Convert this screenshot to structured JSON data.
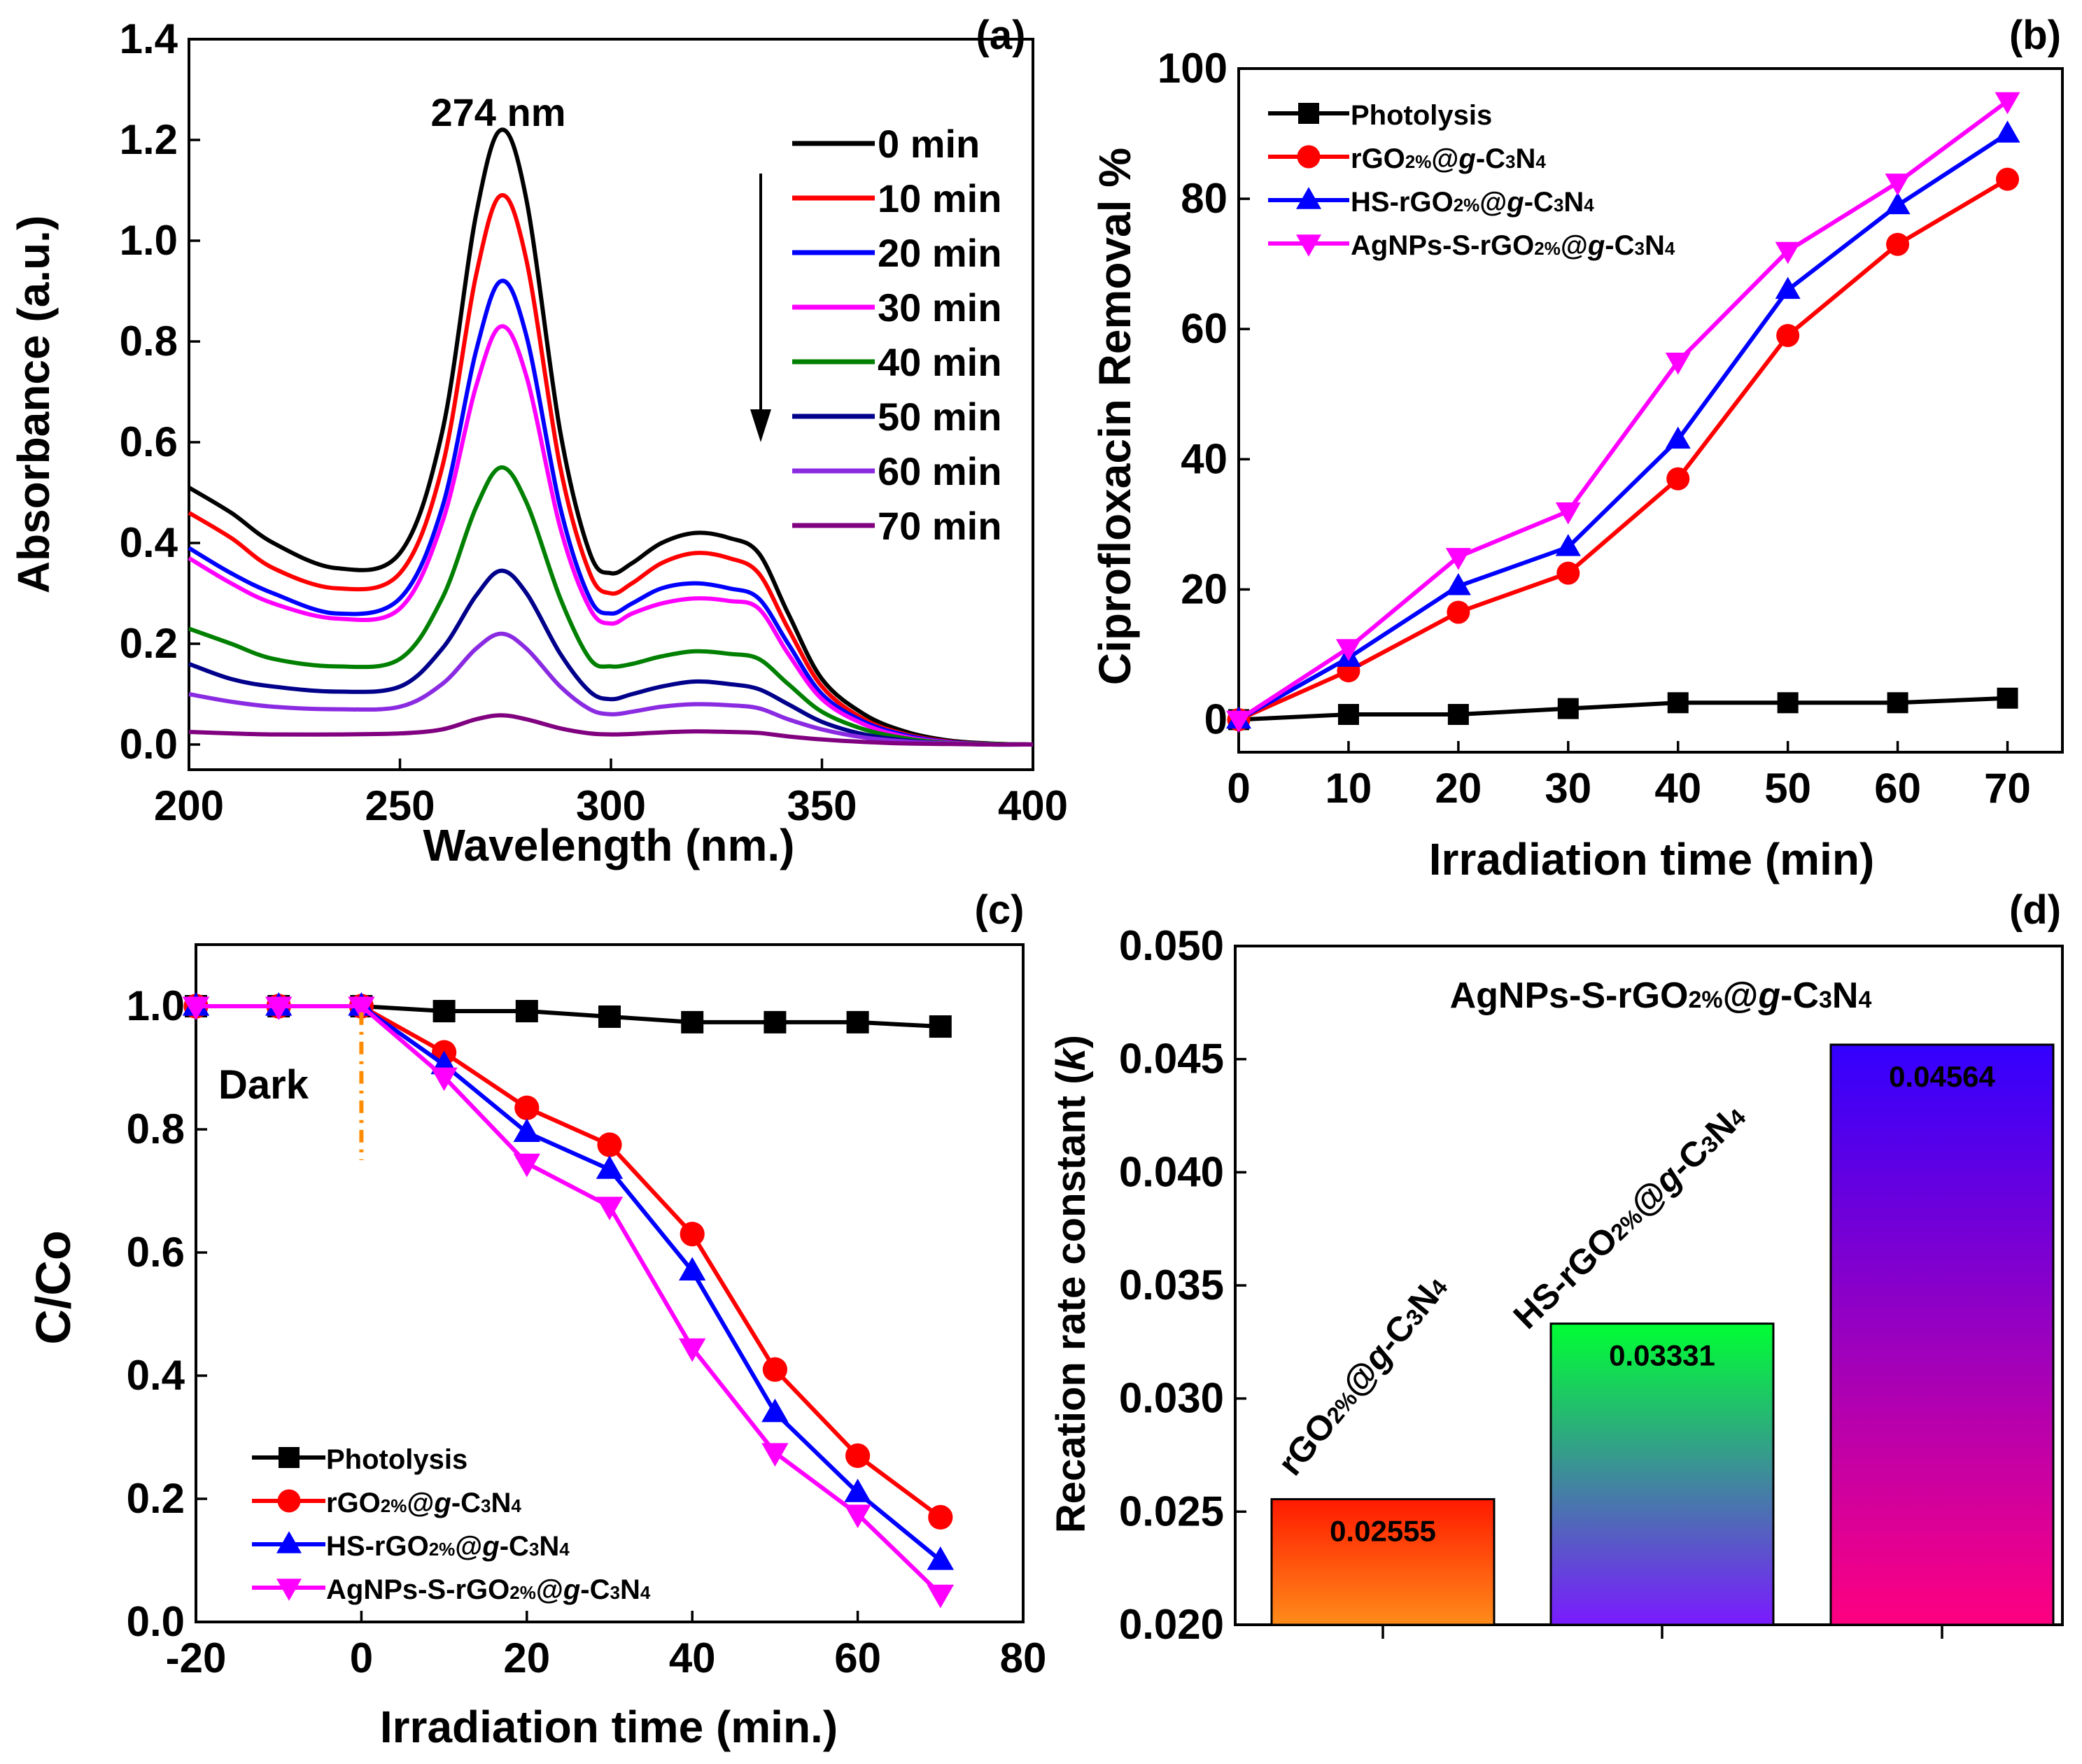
{
  "chart_data": [
    {
      "panel": "(a)",
      "type": "line",
      "xlabel": "Wavelength (nm.)",
      "ylabel": "Absorbance (a.u.)",
      "xlim": [
        200,
        400
      ],
      "ylim": [
        -0.05,
        1.4
      ],
      "xticks": [
        200,
        250,
        300,
        350,
        400
      ],
      "xtick_labels": [
        "200",
        "250",
        "300",
        "350",
        "400"
      ],
      "yticks": [
        0.0,
        0.2,
        0.4,
        0.6,
        0.8,
        1.0,
        1.2,
        1.4
      ],
      "ytick_labels": [
        "0.0",
        "0.2",
        "0.4",
        "0.6",
        "0.8",
        "1.0",
        "1.2",
        "1.4"
      ],
      "annotation": "274 nm",
      "legend_position": "top-right",
      "arrow_direction": "down",
      "x": [
        200,
        210,
        220,
        235,
        250,
        260,
        268,
        274,
        280,
        288,
        295,
        300,
        305,
        312,
        320,
        328,
        335,
        342,
        350,
        360,
        370,
        380,
        390,
        400
      ],
      "series": [
        {
          "name": "0 min",
          "color": "#000000",
          "values": [
            0.51,
            0.46,
            0.4,
            0.35,
            0.38,
            0.62,
            1.05,
            1.22,
            1.08,
            0.62,
            0.38,
            0.34,
            0.36,
            0.4,
            0.42,
            0.41,
            0.38,
            0.26,
            0.13,
            0.06,
            0.025,
            0.008,
            0.002,
            0.0
          ]
        },
        {
          "name": "10 min",
          "color": "#ff0000",
          "values": [
            0.46,
            0.41,
            0.35,
            0.31,
            0.34,
            0.55,
            0.93,
            1.09,
            0.96,
            0.55,
            0.34,
            0.3,
            0.32,
            0.36,
            0.38,
            0.37,
            0.34,
            0.23,
            0.115,
            0.05,
            0.02,
            0.006,
            0.001,
            0.0
          ]
        },
        {
          "name": "20 min",
          "color": "#0000ff",
          "values": [
            0.39,
            0.34,
            0.3,
            0.26,
            0.29,
            0.47,
            0.78,
            0.92,
            0.81,
            0.47,
            0.29,
            0.26,
            0.28,
            0.31,
            0.32,
            0.31,
            0.29,
            0.2,
            0.1,
            0.045,
            0.018,
            0.005,
            0.001,
            0.0
          ]
        },
        {
          "name": "30 min",
          "color": "#ff00ff",
          "values": [
            0.37,
            0.32,
            0.28,
            0.25,
            0.27,
            0.44,
            0.71,
            0.83,
            0.73,
            0.43,
            0.27,
            0.24,
            0.26,
            0.28,
            0.29,
            0.285,
            0.27,
            0.18,
            0.09,
            0.04,
            0.015,
            0.004,
            0.001,
            0.0
          ]
        },
        {
          "name": "40 min",
          "color": "#008000",
          "values": [
            0.23,
            0.2,
            0.17,
            0.155,
            0.17,
            0.29,
            0.47,
            0.55,
            0.48,
            0.29,
            0.17,
            0.155,
            0.16,
            0.175,
            0.185,
            0.18,
            0.17,
            0.12,
            0.065,
            0.03,
            0.012,
            0.003,
            0.001,
            0.0
          ]
        },
        {
          "name": "50 min",
          "color": "#00008b",
          "values": [
            0.16,
            0.13,
            0.115,
            0.105,
            0.115,
            0.19,
            0.295,
            0.345,
            0.3,
            0.18,
            0.105,
            0.09,
            0.1,
            0.115,
            0.125,
            0.12,
            0.11,
            0.08,
            0.045,
            0.02,
            0.008,
            0.002,
            0.0,
            0.0
          ]
        },
        {
          "name": "60 min",
          "color": "#8a2be2",
          "values": [
            0.1,
            0.085,
            0.075,
            0.07,
            0.075,
            0.12,
            0.19,
            0.22,
            0.19,
            0.115,
            0.07,
            0.06,
            0.065,
            0.075,
            0.08,
            0.078,
            0.072,
            0.05,
            0.03,
            0.014,
            0.006,
            0.002,
            0.0,
            0.0
          ]
        },
        {
          "name": "70 min",
          "color": "#800080",
          "values": [
            0.025,
            0.022,
            0.02,
            0.02,
            0.022,
            0.03,
            0.05,
            0.058,
            0.05,
            0.032,
            0.022,
            0.02,
            0.021,
            0.024,
            0.026,
            0.025,
            0.023,
            0.016,
            0.01,
            0.005,
            0.002,
            0.001,
            0.0,
            0.0
          ]
        }
      ]
    },
    {
      "panel": "(b)",
      "type": "line",
      "xlabel": "Irradiation time (min)",
      "ylabel": "Ciprofloxacin Removal %",
      "xlim": [
        0,
        75
      ],
      "ylim": [
        -5,
        100
      ],
      "xticks": [
        0,
        10,
        20,
        30,
        40,
        50,
        60,
        70
      ],
      "xtick_labels": [
        "0",
        "10",
        "20",
        "30",
        "40",
        "50",
        "60",
        "70"
      ],
      "yticks": [
        0,
        20,
        40,
        60,
        80,
        100
      ],
      "ytick_labels": [
        "0",
        "20",
        "40",
        "60",
        "80",
        "100"
      ],
      "legend_position": "top-left",
      "x": [
        0,
        10,
        20,
        30,
        40,
        50,
        60,
        70
      ],
      "series": [
        {
          "name": "Photolysis",
          "color": "#000000",
          "marker": "square",
          "values": [
            0,
            0.8,
            0.8,
            1.7,
            2.6,
            2.6,
            2.6,
            3.3
          ]
        },
        {
          "name": "rGO2%@g-C3N4",
          "name_parts": {
            "a": "rGO",
            "b": "2%",
            "c": "@",
            "d": "g",
            "e": "-C",
            "f": "3",
            "g": "N",
            "h": "4"
          },
          "color": "#ff0000",
          "marker": "circle",
          "values": [
            0,
            7.5,
            16.5,
            22.5,
            37,
            59,
            73,
            83
          ]
        },
        {
          "name": "HS-rGO2%@g-C3N4",
          "name_parts": {
            "a": "HS-rGO",
            "b": "2%",
            "c": "@",
            "d": "g",
            "e": "-C",
            "f": "3",
            "g": "N",
            "h": "4"
          },
          "color": "#0000ff",
          "marker": "triangle-up",
          "values": [
            0,
            9.5,
            20.5,
            26.5,
            43,
            66,
            79,
            90
          ]
        },
        {
          "name": "AgNPs-S-rGO2%@g-C3N4",
          "name_parts": {
            "a": "AgNPs-S-rGO",
            "b": "2%",
            "c": "@",
            "d": "g",
            "e": "-C",
            "f": "3",
            "g": "N",
            "h": "4"
          },
          "color": "#ff00ff",
          "marker": "triangle-down",
          "values": [
            0,
            11,
            25,
            32,
            55,
            72,
            82.5,
            95
          ]
        }
      ]
    },
    {
      "panel": "(c)",
      "type": "line",
      "xlabel": "Irradiation time (min.)",
      "ylabel": "C/Co",
      "xlim": [
        -20,
        80
      ],
      "ylim": [
        0,
        1.1
      ],
      "xticks": [
        -20,
        0,
        20,
        40,
        60,
        80
      ],
      "xtick_labels": [
        "-20",
        "0",
        "20",
        "40",
        "60",
        "80"
      ],
      "yticks": [
        0.0,
        0.2,
        0.4,
        0.6,
        0.8,
        1.0
      ],
      "ytick_labels": [
        "0.0",
        "0.2",
        "0.4",
        "0.6",
        "0.8",
        "1.0"
      ],
      "annotation": "Dark",
      "dark_marker_x": 0,
      "dark_marker_range": [
        0.75,
        0.99
      ],
      "legend_position": "bottom-left",
      "x": [
        -20,
        -10,
        0,
        10,
        20,
        30,
        40,
        50,
        60,
        70
      ],
      "series": [
        {
          "name": "Photolysis",
          "color": "#000000",
          "marker": "square",
          "values": [
            1.0,
            1.0,
            1.0,
            0.992,
            0.992,
            0.983,
            0.974,
            0.974,
            0.974,
            0.967
          ]
        },
        {
          "name": "rGO2%@g-C3N4",
          "color": "#ff0000",
          "marker": "circle",
          "values": [
            1.0,
            1.0,
            1.0,
            0.925,
            0.835,
            0.775,
            0.63,
            0.41,
            0.27,
            0.17
          ]
        },
        {
          "name": "HS-rGO2%@g-C3N4",
          "color": "#0000ff",
          "marker": "triangle-up",
          "values": [
            1.0,
            1.0,
            1.0,
            0.905,
            0.795,
            0.735,
            0.57,
            0.34,
            0.21,
            0.1
          ]
        },
        {
          "name": "AgNPs-S-rGO2%@g-C3N4",
          "color": "#ff00ff",
          "marker": "triangle-down",
          "values": [
            1.0,
            1.0,
            1.0,
            0.885,
            0.745,
            0.675,
            0.445,
            0.275,
            0.175,
            0.045
          ]
        }
      ]
    },
    {
      "panel": "(d)",
      "type": "bar",
      "xlabel": "",
      "ylabel": "Recation rate constant (k)",
      "ylabel_parts": {
        "a": "Recation rate constant (",
        "b": "k",
        "c": ")"
      },
      "ylim": [
        0.02,
        0.05
      ],
      "yticks": [
        0.02,
        0.025,
        0.03,
        0.035,
        0.04,
        0.045,
        0.05
      ],
      "ytick_labels": [
        "0.020",
        "0.025",
        "0.030",
        "0.035",
        "0.040",
        "0.045",
        "0.050"
      ],
      "categories": [
        "rGO2%@g-C3N4",
        "HS-rGO2%@g-C3N4",
        "AgNPs-S-rGO2%@g-C3N4"
      ],
      "category_parts": [
        {
          "a": "rGO",
          "b": "2%",
          "c": "@",
          "d": "g",
          "e": "-C",
          "f": "3",
          "g": "N",
          "h": "4"
        },
        {
          "a": "HS-rGO",
          "b": "2%",
          "c": "@",
          "d": "g",
          "e": "-C",
          "f": "3",
          "g": "N",
          "h": "4"
        },
        {
          "a": "AgNPs-S-rGO",
          "b": "2%",
          "c": "@",
          "d": "g",
          "e": "-C",
          "f": "3",
          "g": "N",
          "h": "4"
        }
      ],
      "values": [
        0.02555,
        0.03331,
        0.04564
      ],
      "value_labels": [
        "0.02555",
        "0.03331",
        "0.04564"
      ],
      "bar_gradients": [
        [
          "#ff1a00",
          "#ff8c1a"
        ],
        [
          "#00ff33",
          "#7a1aff"
        ],
        [
          "#3300ff",
          "#ff0080"
        ]
      ],
      "category_colors": [
        "#ff0000",
        "#0000ff",
        "#ff00ff"
      ]
    }
  ]
}
